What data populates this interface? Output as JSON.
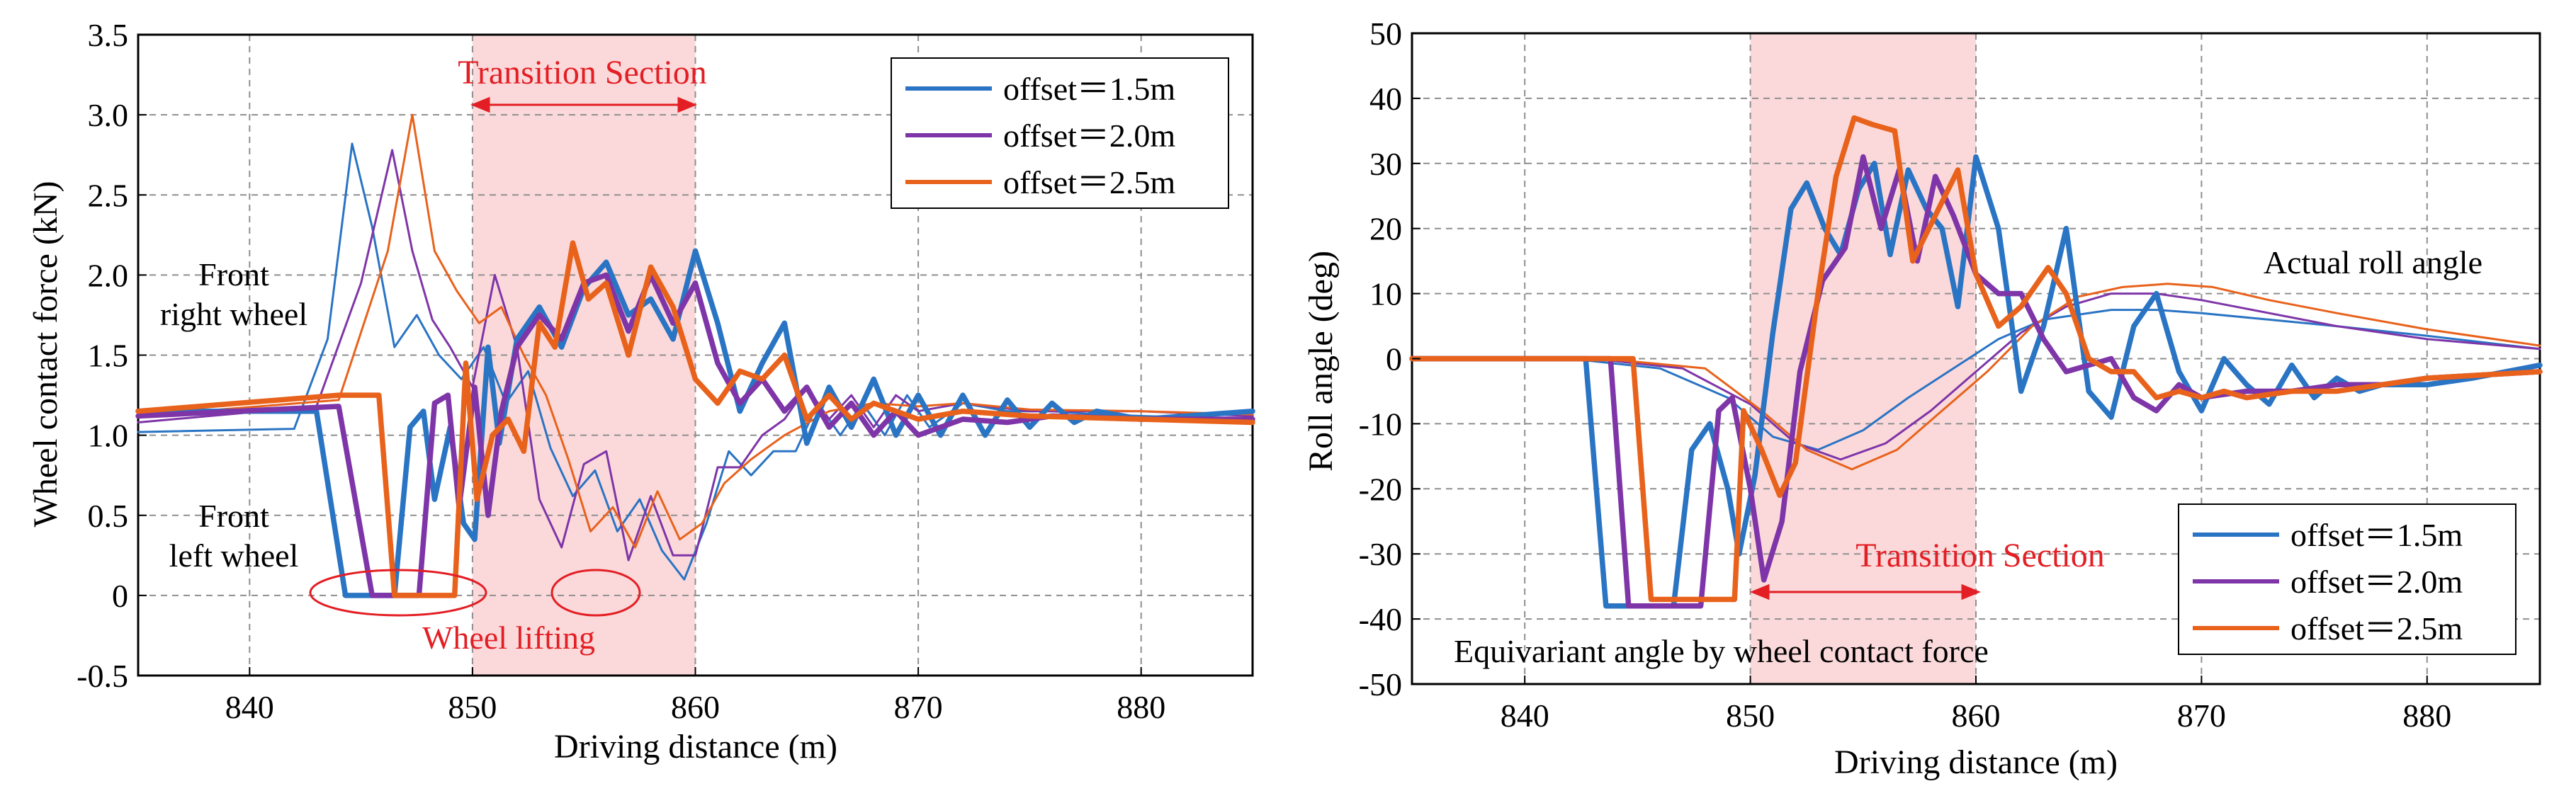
{
  "colors": {
    "s1": "#2a74c4",
    "s2": "#7e35a8",
    "s3": "#e8621c",
    "band": "#fbd9da",
    "red": "#e31e24",
    "grid": "#8f8f8f"
  },
  "chart_data": [
    {
      "type": "line",
      "title": "",
      "xlabel": "Driving distance (m)",
      "ylabel": "Wheel contact force (kN)",
      "xlim": [
        835,
        885
      ],
      "ylim": [
        -0.5,
        3.5
      ],
      "xticks": [
        840,
        850,
        860,
        870,
        880
      ],
      "yticks": [
        -0.5,
        0,
        0.5,
        1.0,
        1.5,
        2.0,
        2.5,
        3.0,
        3.5
      ],
      "ytick_labels": [
        "-0.5",
        "0",
        "0.5",
        "1.0",
        "1.5",
        "2.0",
        "2.5",
        "3.0",
        "3.5"
      ],
      "grid": true,
      "legend_position": "top-right",
      "legend": [
        "offset＝1.5m",
        "offset＝2.0m",
        "offset＝2.5m"
      ],
      "shaded_region": [
        850,
        860
      ],
      "annotations": {
        "transition": "Transition Section",
        "right_wheel_1": "Front",
        "right_wheel_2": "right wheel",
        "left_wheel_1": "Front",
        "left_wheel_2": "left wheel",
        "lifting": "Wheel  lifting"
      },
      "series": [
        {
          "name": "offset＝1.5m",
          "group": "front right wheel",
          "x": [
            835,
            842,
            843.5,
            844.6,
            845.5,
            846.5,
            847.5,
            848.5,
            849.5,
            850.5,
            851.5,
            852.5,
            853.5,
            854.5,
            855.5,
            856.5,
            857.5,
            858.5,
            859.5,
            860.5,
            861.5,
            862.5,
            863.5,
            864.5,
            865.5,
            866.5,
            867.5,
            868.5,
            869.5,
            870.5,
            872,
            874,
            876,
            878,
            880,
            885
          ],
          "y": [
            1.02,
            1.04,
            1.6,
            2.82,
            2.3,
            1.55,
            1.75,
            1.5,
            1.35,
            1.55,
            1.2,
            1.4,
            0.92,
            0.62,
            0.78,
            0.4,
            0.6,
            0.28,
            0.1,
            0.45,
            0.9,
            0.75,
            0.9,
            0.9,
            1.2,
            1.0,
            1.2,
            1.0,
            1.25,
            1.05,
            1.2,
            1.15,
            1.15,
            1.13,
            1.12,
            1.1
          ]
        },
        {
          "name": "offset＝2.0m",
          "group": "front right wheel",
          "x": [
            835,
            843,
            845,
            846.4,
            847.3,
            848.2,
            849,
            850,
            851,
            852,
            853,
            854,
            855,
            856,
            857,
            858,
            859,
            860,
            861,
            862,
            863,
            864,
            865,
            866,
            867,
            868,
            869,
            870,
            872,
            875,
            880,
            885
          ],
          "y": [
            1.08,
            1.18,
            1.95,
            2.78,
            2.15,
            1.72,
            1.55,
            1.3,
            2.0,
            1.55,
            0.6,
            0.3,
            0.82,
            0.9,
            0.22,
            0.62,
            0.25,
            0.25,
            0.8,
            0.8,
            1.0,
            1.1,
            1.3,
            1.1,
            1.25,
            1.05,
            1.25,
            1.15,
            1.2,
            1.15,
            1.15,
            1.12
          ]
        },
        {
          "name": "offset＝2.5m",
          "group": "front right wheel",
          "x": [
            835,
            844,
            846.2,
            847.3,
            848.3,
            849.3,
            850.3,
            851.3,
            852.3,
            853.3,
            854.3,
            855.3,
            856.3,
            857.3,
            858.3,
            859.3,
            860.3,
            861.3,
            862.5,
            864,
            866,
            868,
            870,
            872,
            875,
            880,
            885
          ],
          "y": [
            1.12,
            1.22,
            2.15,
            3.0,
            2.15,
            1.9,
            1.7,
            1.8,
            1.5,
            1.25,
            0.85,
            0.4,
            0.55,
            0.3,
            0.65,
            0.35,
            0.45,
            0.7,
            0.85,
            1.0,
            1.15,
            1.2,
            1.18,
            1.2,
            1.16,
            1.15,
            1.13
          ]
        },
        {
          "name": "offset＝1.5m",
          "group": "front left wheel",
          "thick": true,
          "x": [
            835,
            843,
            844.3,
            846.5,
            847.2,
            847.8,
            848.3,
            849,
            849.6,
            850.1,
            850.7,
            851.2,
            852,
            853,
            854,
            855,
            856,
            857,
            858,
            859,
            860,
            861,
            862,
            863,
            864,
            865,
            866,
            867,
            868,
            869,
            870,
            871,
            872,
            873,
            874,
            875,
            876,
            877,
            878,
            880,
            885
          ],
          "y": [
            1.15,
            1.15,
            0.0,
            0.0,
            1.05,
            1.15,
            0.6,
            1.05,
            0.45,
            0.35,
            1.55,
            0.95,
            1.6,
            1.8,
            1.55,
            1.92,
            2.08,
            1.75,
            1.85,
            1.6,
            2.15,
            1.7,
            1.15,
            1.45,
            1.7,
            0.95,
            1.3,
            1.05,
            1.35,
            1.0,
            1.25,
            1.0,
            1.25,
            1.0,
            1.22,
            1.05,
            1.2,
            1.08,
            1.15,
            1.1,
            1.15
          ]
        },
        {
          "name": "offset＝2.0m",
          "group": "front left wheel",
          "thick": true,
          "x": [
            835,
            844,
            845.5,
            847.6,
            848.3,
            848.9,
            849.4,
            850.1,
            850.7,
            851.3,
            852,
            853,
            854,
            855,
            856,
            857,
            858,
            859,
            860,
            861,
            862,
            863,
            864,
            865,
            866,
            867,
            868,
            869,
            870,
            872,
            874,
            876,
            880,
            885
          ],
          "y": [
            1.12,
            1.18,
            0.0,
            0.0,
            1.2,
            1.25,
            0.55,
            1.3,
            0.5,
            1.15,
            1.55,
            1.75,
            1.6,
            1.95,
            2.0,
            1.65,
            2.0,
            1.7,
            1.95,
            1.45,
            1.2,
            1.35,
            1.15,
            1.3,
            1.05,
            1.2,
            1.0,
            1.15,
            1.0,
            1.1,
            1.08,
            1.12,
            1.1,
            1.1
          ]
        },
        {
          "name": "offset＝2.5m",
          "group": "front left wheel",
          "thick": true,
          "x": [
            835,
            844,
            845.8,
            846.5,
            849.2,
            849.7,
            850.2,
            850.9,
            851.6,
            852.3,
            853,
            853.7,
            854.5,
            855.2,
            856,
            857,
            858,
            859,
            860,
            861,
            862,
            863,
            864,
            865,
            866,
            867,
            868,
            870,
            872,
            875,
            880,
            885
          ],
          "y": [
            1.15,
            1.25,
            1.25,
            0.0,
            0.0,
            1.45,
            0.6,
            1.0,
            1.1,
            0.9,
            1.7,
            1.55,
            2.2,
            1.85,
            1.95,
            1.5,
            2.05,
            1.8,
            1.35,
            1.2,
            1.4,
            1.35,
            1.5,
            1.1,
            1.25,
            1.1,
            1.2,
            1.1,
            1.15,
            1.12,
            1.1,
            1.08
          ]
        }
      ]
    },
    {
      "type": "line",
      "title": "",
      "xlabel": "Driving distance (m)",
      "ylabel": "Roll angle (deg)",
      "xlim": [
        835,
        885
      ],
      "ylim": [
        -50,
        50
      ],
      "xticks": [
        840,
        850,
        860,
        870,
        880
      ],
      "yticks": [
        -50,
        -40,
        -30,
        -20,
        -10,
        0,
        10,
        20,
        30,
        40,
        50
      ],
      "ytick_labels": [
        "-50",
        "-40",
        "-30",
        "-20",
        "-10",
        "0",
        "10",
        "20",
        "30",
        "40",
        "50"
      ],
      "grid": true,
      "legend_position": "bottom-right",
      "legend": [
        "offset＝1.5m",
        "offset＝2.0m",
        "offset＝2.5m"
      ],
      "shaded_region": [
        850,
        860
      ],
      "annotations": {
        "transition": "Transition  Section",
        "actual": "Actual roll angle",
        "equivariant": "Equivariant angle by wheel contact force"
      },
      "series": [
        {
          "name": "offset＝1.5m",
          "group": "actual roll angle",
          "x": [
            835,
            842,
            846,
            849,
            851,
            853,
            855,
            857,
            859,
            861,
            863,
            866,
            868,
            870,
            873,
            876,
            880,
            885
          ],
          "y": [
            0,
            0,
            -1.5,
            -6,
            -12,
            -14,
            -11,
            -6,
            -1.5,
            3,
            6,
            7.5,
            7.5,
            7,
            6,
            5,
            3.5,
            1.5
          ]
        },
        {
          "name": "offset＝2.0m",
          "group": "actual roll angle",
          "x": [
            835,
            843,
            847,
            850,
            852,
            854,
            856,
            858,
            860,
            862,
            864,
            866,
            868,
            870,
            873,
            876,
            880,
            885
          ],
          "y": [
            0,
            0,
            -1.5,
            -7,
            -13,
            -15.5,
            -13,
            -8,
            -2,
            4,
            8,
            10,
            10,
            9,
            7,
            5,
            3,
            1.5
          ]
        },
        {
          "name": "offset＝2.5m",
          "group": "actual roll angle",
          "x": [
            835,
            843.5,
            848,
            850.5,
            852.5,
            854.5,
            856.5,
            858.5,
            860.5,
            862.5,
            864.5,
            866.5,
            868.5,
            870.5,
            873,
            876,
            880,
            885
          ],
          "y": [
            0,
            0,
            -1.5,
            -8,
            -14,
            -17,
            -14,
            -8,
            -2,
            5,
            9.5,
            11,
            11.5,
            11,
            9,
            7,
            4.5,
            2
          ]
        },
        {
          "name": "offset＝1.5m",
          "group": "equivariant angle",
          "thick": true,
          "x": [
            835,
            842.7,
            843.6,
            846.6,
            847.4,
            848.2,
            849,
            849.5,
            850.2,
            851,
            851.8,
            852.5,
            853.3,
            854,
            854.8,
            855.5,
            856.2,
            857,
            857.8,
            858.5,
            859.2,
            860,
            861,
            862,
            863,
            864,
            865,
            866,
            867,
            868,
            869,
            870,
            871,
            872,
            873,
            874,
            875,
            876,
            877,
            878,
            880,
            882,
            885
          ],
          "y": [
            0,
            0,
            -38,
            -38,
            -14,
            -10,
            -20,
            -30,
            -18,
            4,
            23,
            27,
            20,
            16,
            26,
            30,
            16,
            29,
            23,
            20,
            8,
            31,
            20,
            -5,
            5,
            20,
            -5,
            -9,
            5,
            10,
            -2,
            -8,
            0,
            -4,
            -7,
            -1,
            -6,
            -3,
            -5,
            -4,
            -4,
            -3,
            -1
          ]
        },
        {
          "name": "offset＝2.0m",
          "group": "equivariant angle",
          "thick": true,
          "x": [
            835,
            843.8,
            844.6,
            847.8,
            848.6,
            849.2,
            850,
            850.6,
            851.4,
            852.2,
            853.2,
            854.2,
            855,
            855.8,
            856.6,
            857.4,
            858.2,
            859,
            860,
            861,
            862,
            863,
            864,
            865,
            866,
            867,
            868,
            869,
            870,
            872,
            874,
            876,
            878,
            880,
            885
          ],
          "y": [
            0,
            0,
            -38,
            -38,
            -8,
            -6,
            -20,
            -34,
            -25,
            -2,
            12,
            17,
            31,
            20,
            29,
            15,
            28,
            22,
            13,
            10,
            10,
            3,
            -2,
            -1,
            0,
            -6,
            -8,
            -4,
            -6,
            -5,
            -5,
            -4,
            -4,
            -3,
            -2
          ]
        },
        {
          "name": "offset＝2.5m",
          "group": "equivariant angle",
          "thick": true,
          "x": [
            835,
            844.8,
            845.6,
            849.3,
            849.7,
            850.5,
            851.3,
            852,
            853,
            853.8,
            854.6,
            855.4,
            856.4,
            857.2,
            858.2,
            859.2,
            860,
            861,
            862,
            863.2,
            864,
            865,
            866,
            867,
            868,
            869,
            870,
            871,
            872,
            874,
            876,
            878,
            880,
            885
          ],
          "y": [
            0,
            0,
            -37,
            -37,
            -8,
            -14,
            -21,
            -16,
            10,
            28,
            37,
            36,
            35,
            15,
            22,
            29,
            13,
            5,
            8,
            14,
            10,
            0,
            -2,
            -2,
            -6,
            -5,
            -6,
            -5,
            -6,
            -5,
            -5,
            -4,
            -3,
            -2
          ]
        }
      ]
    }
  ]
}
